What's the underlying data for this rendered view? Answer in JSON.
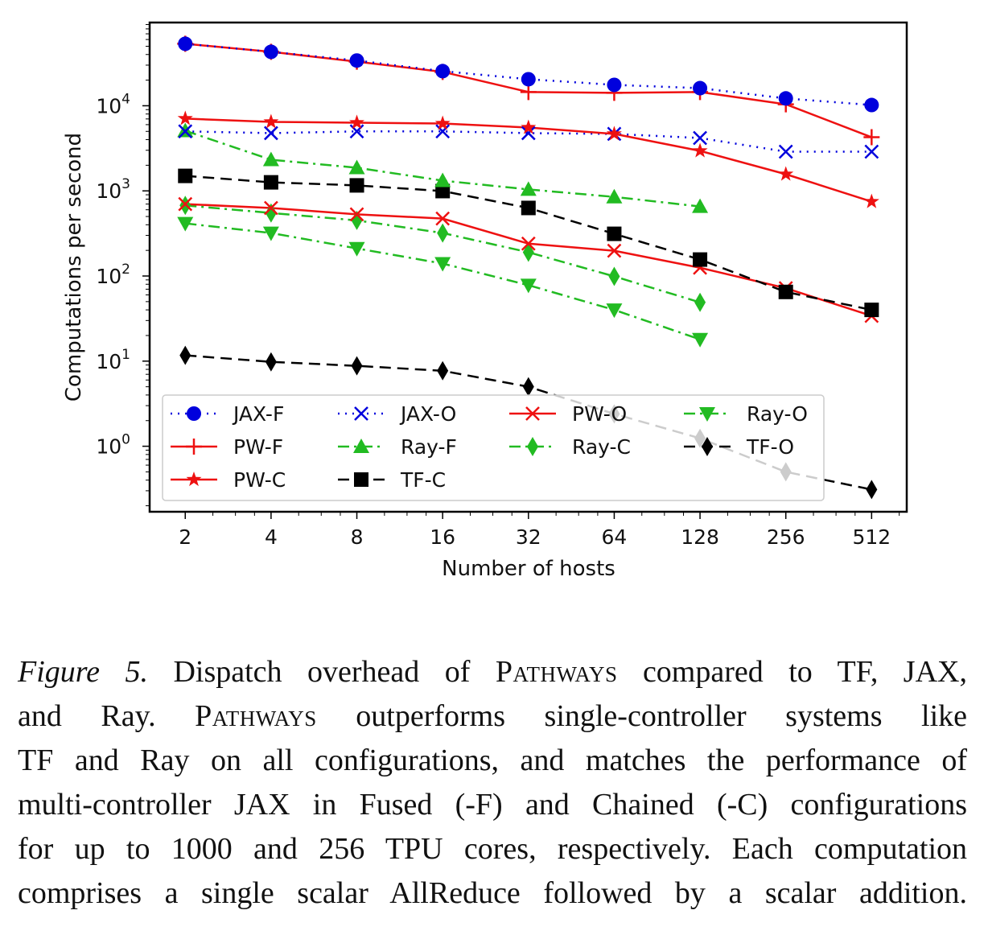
{
  "chart_data": {
    "type": "line",
    "title": "",
    "xlabel": "Number of hosts",
    "ylabel": "Computations per second",
    "xscale": "log2",
    "yscale": "log10",
    "xlim": [
      1.5,
      680
    ],
    "ylim": [
      0.17,
      95000
    ],
    "x_ticks": [
      2,
      4,
      8,
      16,
      32,
      64,
      128,
      256,
      512
    ],
    "x_tick_labels": [
      "2",
      "4",
      "8",
      "16",
      "32",
      "64",
      "128",
      "256",
      "512"
    ],
    "y_ticks": [
      1,
      10,
      100,
      1000,
      10000
    ],
    "y_tick_labels": [
      {
        "base": "10",
        "exp": "0"
      },
      {
        "base": "10",
        "exp": "1"
      },
      {
        "base": "10",
        "exp": "2"
      },
      {
        "base": "10",
        "exp": "3"
      },
      {
        "base": "10",
        "exp": "4"
      }
    ],
    "grid": false,
    "legend_placement": "lower-left",
    "legend_columns": 4,
    "x": [
      2,
      4,
      8,
      16,
      32,
      64,
      128,
      256,
      512
    ],
    "series": [
      {
        "name": "JAX-F",
        "color": "#0000dd",
        "marker": "circle",
        "linestyle": "dotted",
        "values": [
          53500,
          43000,
          34000,
          25500,
          20500,
          17600,
          16100,
          12200,
          10200
        ]
      },
      {
        "name": "PW-F",
        "color": "#ee1111",
        "marker": "plus",
        "linestyle": "solid",
        "values": [
          53500,
          43000,
          33000,
          25000,
          14500,
          14200,
          14500,
          10400,
          4270
        ]
      },
      {
        "name": "PW-C",
        "color": "#ee1111",
        "marker": "star",
        "linestyle": "solid",
        "values": [
          7060,
          6460,
          6330,
          6190,
          5550,
          4670,
          2950,
          1570,
          748
        ]
      },
      {
        "name": "JAX-O",
        "color": "#0000dd",
        "marker": "x",
        "linestyle": "dotted",
        "values": [
          5000,
          4770,
          5000,
          5000,
          4770,
          4670,
          4180,
          2890,
          2890
        ]
      },
      {
        "name": "Ray-F",
        "color": "#22bb22",
        "marker": "triangle-up",
        "linestyle": "dashdot",
        "values": [
          5090,
          2320,
          1870,
          1320,
          1040,
          850,
          656,
          null,
          null
        ]
      },
      {
        "name": "TF-C",
        "color": "#000000",
        "marker": "square",
        "linestyle": "dashed",
        "values": [
          1500,
          1260,
          1160,
          995,
          630,
          313,
          156,
          65,
          40
        ]
      },
      {
        "name": "PW-O",
        "color": "#ee1111",
        "marker": "x",
        "linestyle": "solid",
        "values": [
          700,
          630,
          530,
          473,
          240,
          198,
          125,
          72,
          34
        ]
      },
      {
        "name": "Ray-C",
        "color": "#22bb22",
        "marker": "thin-diamond",
        "linestyle": "dashdot",
        "values": [
          675,
          550,
          450,
          320,
          190,
          99,
          49,
          null,
          null
        ]
      },
      {
        "name": "Ray-O",
        "color": "#22bb22",
        "marker": "triangle-down",
        "linestyle": "dashdot",
        "values": [
          415,
          320,
          211,
          140,
          78,
          40,
          18,
          null,
          null
        ]
      },
      {
        "name": "TF-O",
        "color": "#000000",
        "marker": "thin-diamond",
        "linestyle": "dashed",
        "values": [
          11.7,
          9.8,
          8.8,
          7.7,
          5,
          2.4,
          1.24,
          0.5,
          0.31
        ]
      }
    ],
    "legend_order": [
      "JAX-F",
      "JAX-O",
      "PW-O",
      "Ray-O",
      "PW-F",
      "Ray-F",
      "Ray-C",
      "TF-O",
      "PW-C",
      "TF-C"
    ]
  },
  "caption": {
    "label": "Figure 5.",
    "line1_a": " Dispatch overhead of ",
    "system": "Pathways",
    "line1_b": " compared to TF, JAX,",
    "line2_a": "and Ray. ",
    "line2_b": " outperforms single-controller systems like",
    "line3": "TF and Ray on all configurations, and matches the performance of",
    "line4": "multi-controller JAX in Fused (-F) and Chained (-C) configurations",
    "line5": "for up to 1000 and 256 TPU cores, respectively. Each computation",
    "line6": "comprises a single scalar AllReduce followed by a scalar addition."
  }
}
